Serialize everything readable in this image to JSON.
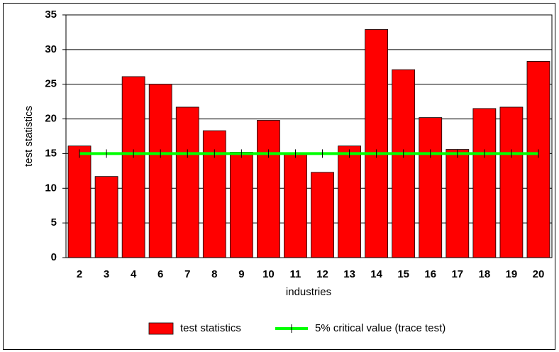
{
  "chart_data": {
    "type": "bar",
    "x_label": "industries",
    "y_label": "test statistics",
    "categories": [
      "2",
      "3",
      "4",
      "6",
      "7",
      "8",
      "9",
      "10",
      "11",
      "12",
      "13",
      "14",
      "15",
      "16",
      "17",
      "18",
      "19",
      "20"
    ],
    "series": [
      {
        "name": "test statistics",
        "type": "bar",
        "color": "#ff0000",
        "values": [
          16.1,
          11.7,
          26.1,
          25.0,
          21.7,
          18.3,
          15.2,
          19.8,
          15.0,
          12.3,
          16.1,
          32.9,
          27.1,
          20.2,
          15.6,
          21.5,
          21.7,
          28.3
        ]
      },
      {
        "name": "5% critical value (trace test)",
        "type": "line",
        "color": "#00ff00",
        "values": [
          15,
          15,
          15,
          15,
          15,
          15,
          15,
          15,
          15,
          15,
          15,
          15,
          15,
          15,
          15,
          15,
          15,
          15
        ]
      }
    ],
    "ylim": [
      0,
      35
    ],
    "yticks": [
      0,
      5,
      10,
      15,
      20,
      25,
      30,
      35
    ],
    "grid": true
  }
}
